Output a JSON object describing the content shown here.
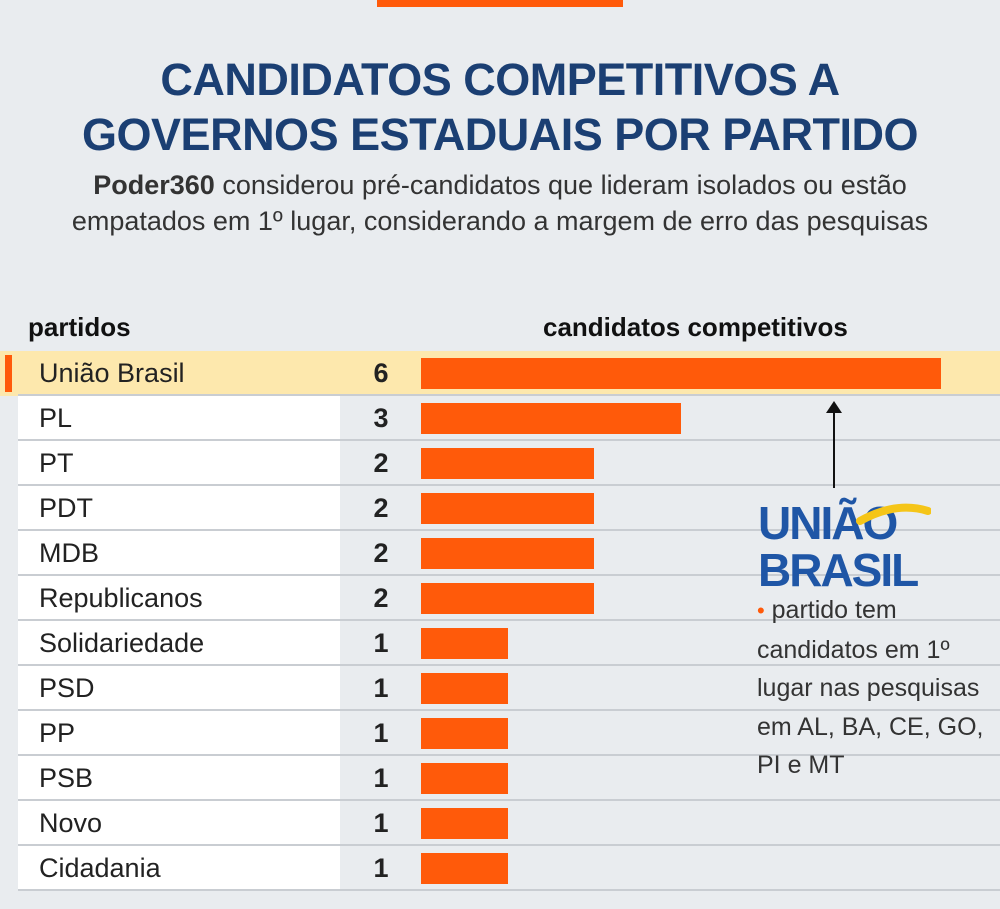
{
  "header": {
    "title_line1": "CANDIDATOS COMPETITIVOS A",
    "title_line2": "GOVERNOS ESTADUAIS POR PARTIDO",
    "subtitle_bold": "Poder360",
    "subtitle_text": " considerou pré-candidatos que lideram isolados ou estão empatados em 1º lugar, considerando a margem de erro das pesquisas"
  },
  "columns": {
    "left": "partidos",
    "right": "candidatos competitivos"
  },
  "chart_data": {
    "type": "bar",
    "orientation": "horizontal",
    "title": "CANDIDATOS COMPETITIVOS A GOVERNOS ESTADUAIS POR PARTIDO",
    "xlabel": "candidatos competitivos",
    "ylabel": "partidos",
    "categories": [
      "União Brasil",
      "PL",
      "PT",
      "PDT",
      "MDB",
      "Republicanos",
      "Solidariedade",
      "PSD",
      "PP",
      "PSB",
      "Novo",
      "Cidadania"
    ],
    "values": [
      6,
      3,
      2,
      2,
      2,
      2,
      1,
      1,
      1,
      1,
      1,
      1
    ],
    "xlim": [
      0,
      6
    ],
    "highlight": "União Brasil"
  },
  "annotation": {
    "logo_line1": "UNIÃO",
    "logo_line2": "BRASIL",
    "bullet": "•",
    "text": " partido tem candidatos em 1º lugar nas pesquisas em AL, BA, CE, GO, PI e MT"
  },
  "colors": {
    "bar": "#ff5a0a",
    "title": "#1b3f73",
    "highlight_row": "#fde8ad",
    "logo_blue": "#1f56a6",
    "logo_yellow": "#f5c518"
  }
}
